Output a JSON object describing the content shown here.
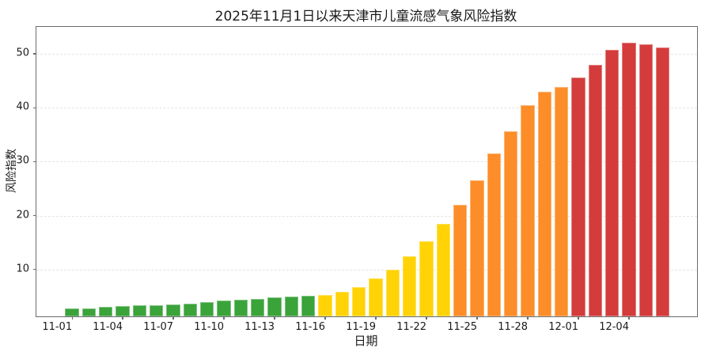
{
  "chart_data": {
    "type": "bar",
    "title": "2025年11月1日以来天津市儿童流感气象风险指数",
    "xlabel": "日期",
    "ylabel": "风险指数",
    "ylim": [
      1.3,
      55
    ],
    "yticks": [
      10,
      20,
      30,
      40,
      50
    ],
    "grid": "horizontal-dashed",
    "legend": "none",
    "categories": [
      "11-01",
      "11-02",
      "11-03",
      "11-04",
      "11-05",
      "11-06",
      "11-07",
      "11-08",
      "11-09",
      "11-10",
      "11-11",
      "11-12",
      "11-13",
      "11-14",
      "11-15",
      "11-16",
      "11-17",
      "11-18",
      "11-19",
      "11-20",
      "11-21",
      "11-22",
      "11-23",
      "11-24",
      "11-25",
      "11-26",
      "11-27",
      "11-28",
      "11-29",
      "11-30",
      "12-01",
      "12-02",
      "12-03",
      "12-04",
      "12-05",
      "12-06"
    ],
    "values": [
      2.8,
      2.8,
      3.0,
      3.2,
      3.3,
      3.3,
      3.5,
      3.6,
      3.9,
      4.2,
      4.4,
      4.6,
      4.8,
      5.0,
      5.1,
      5.3,
      5.9,
      6.8,
      8.4,
      9.9,
      12.5,
      15.2,
      18.4,
      22.0,
      26.6,
      31.6,
      35.7,
      40.5,
      43.0,
      43.8,
      45.6,
      48.0,
      50.7,
      52.0,
      51.8,
      51.2
    ],
    "bar_levels": [
      "green",
      "green",
      "green",
      "green",
      "green",
      "green",
      "green",
      "green",
      "green",
      "green",
      "green",
      "green",
      "green",
      "green",
      "green",
      "yellow",
      "yellow",
      "yellow",
      "yellow",
      "yellow",
      "yellow",
      "yellow",
      "yellow",
      "orange",
      "orange",
      "orange",
      "orange",
      "orange",
      "orange",
      "orange",
      "red",
      "red",
      "red",
      "red",
      "red",
      "red"
    ],
    "color_levels": {
      "green": "#3aa33a",
      "yellow": "#ffd305",
      "orange": "#fd8d28",
      "red": "#d43c3c"
    },
    "xtick_labels": [
      "11-01",
      "11-04",
      "11-07",
      "11-10",
      "11-13",
      "11-16",
      "11-19",
      "11-22",
      "11-25",
      "11-28",
      "12-01",
      "12-04"
    ]
  }
}
